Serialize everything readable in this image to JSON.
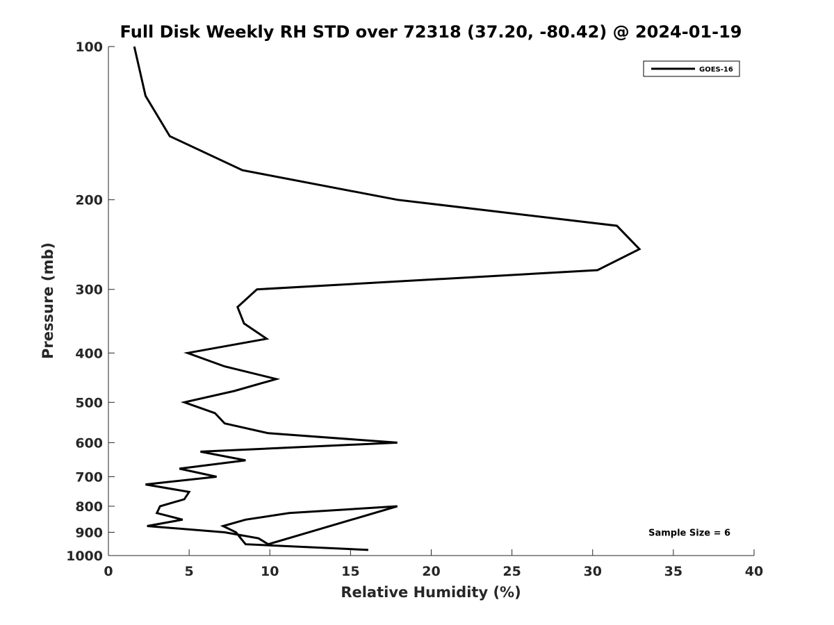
{
  "chart_data": {
    "type": "line",
    "title": "Full Disk Weekly RH STD over 72318 (37.20, -80.42) @ 2024-01-19",
    "xlabel": "Relative Humidity (%)",
    "ylabel": "Pressure (mb)",
    "xlim": [
      0,
      40
    ],
    "ylim": [
      100,
      1000
    ],
    "y_scale": "log",
    "y_reversed": true,
    "x_ticks": [
      0,
      5,
      10,
      15,
      20,
      25,
      30,
      35,
      40
    ],
    "x_tick_labels": [
      "0",
      "5",
      "10",
      "15",
      "20",
      "25",
      "30",
      "35",
      "40"
    ],
    "y_ticks": [
      100,
      200,
      300,
      400,
      500,
      600,
      700,
      800,
      900,
      1000
    ],
    "y_tick_labels": [
      "100",
      "200",
      "300",
      "400",
      "500",
      "600",
      "700",
      "800",
      "900",
      "1000"
    ],
    "grid": false,
    "legend_position": "top-right",
    "series": [
      {
        "name": "GOES-16",
        "color": "#000000",
        "x": [
          1.6,
          2.3,
          3.8,
          8.3,
          17.9,
          31.5,
          32.9,
          30.3,
          9.2,
          8.0,
          8.4,
          9.8,
          4.9,
          7.2,
          10.4,
          7.8,
          4.7,
          6.6,
          7.2,
          9.9,
          17.9,
          5.7,
          8.5,
          4.4,
          6.7,
          2.3,
          5.0,
          4.7,
          3.2,
          3.0,
          4.6,
          2.4,
          7.2,
          9.3,
          9.9,
          17.9,
          11.2,
          8.5,
          7.1,
          7.9,
          8.2,
          8.5,
          16.1
        ],
        "y": [
          100,
          125,
          150,
          175,
          200,
          225,
          250,
          275,
          300,
          325,
          350,
          375,
          400,
          425,
          450,
          475,
          500,
          525,
          550,
          575,
          600,
          625,
          650,
          675,
          700,
          725,
          750,
          775,
          800,
          825,
          850,
          875,
          900,
          925,
          950,
          800,
          825,
          850,
          875,
          900,
          925,
          950,
          975
        ]
      }
    ],
    "annotations": [
      {
        "text": "Sample Size = 6",
        "x": 36.0,
        "pressure": 900
      }
    ]
  }
}
